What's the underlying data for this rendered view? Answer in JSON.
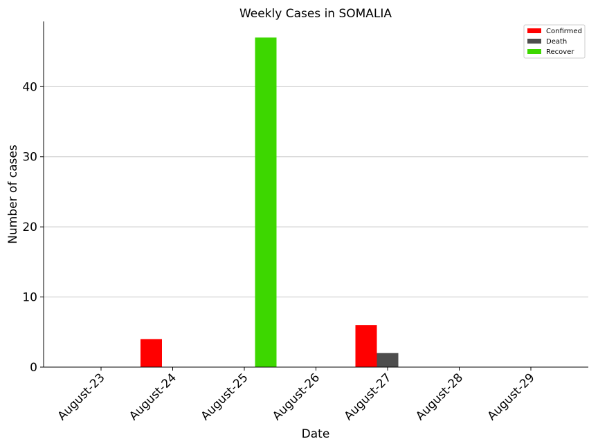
{
  "chart_data": {
    "type": "bar",
    "title": "Weekly Cases in SOMALIA",
    "xlabel": "Date",
    "ylabel": "Number of cases",
    "categories": [
      "August-23",
      "August-24",
      "August-25",
      "August-26",
      "August-27",
      "August-28",
      "August-29"
    ],
    "series": [
      {
        "name": "Confirmed",
        "color": "#ff0000",
        "values": [
          0,
          4,
          0,
          0,
          6,
          0,
          0
        ]
      },
      {
        "name": "Death",
        "color": "#4d4d4d",
        "values": [
          0,
          0,
          0,
          0,
          2,
          0,
          0
        ]
      },
      {
        "name": "Recover",
        "color": "#3dd700",
        "values": [
          0,
          0,
          47,
          0,
          0,
          0,
          0
        ]
      }
    ],
    "ylim": [
      0,
      49.3
    ],
    "yticks": [
      0,
      10,
      20,
      30,
      40
    ],
    "grid": "y",
    "legend_position": "top-right"
  }
}
